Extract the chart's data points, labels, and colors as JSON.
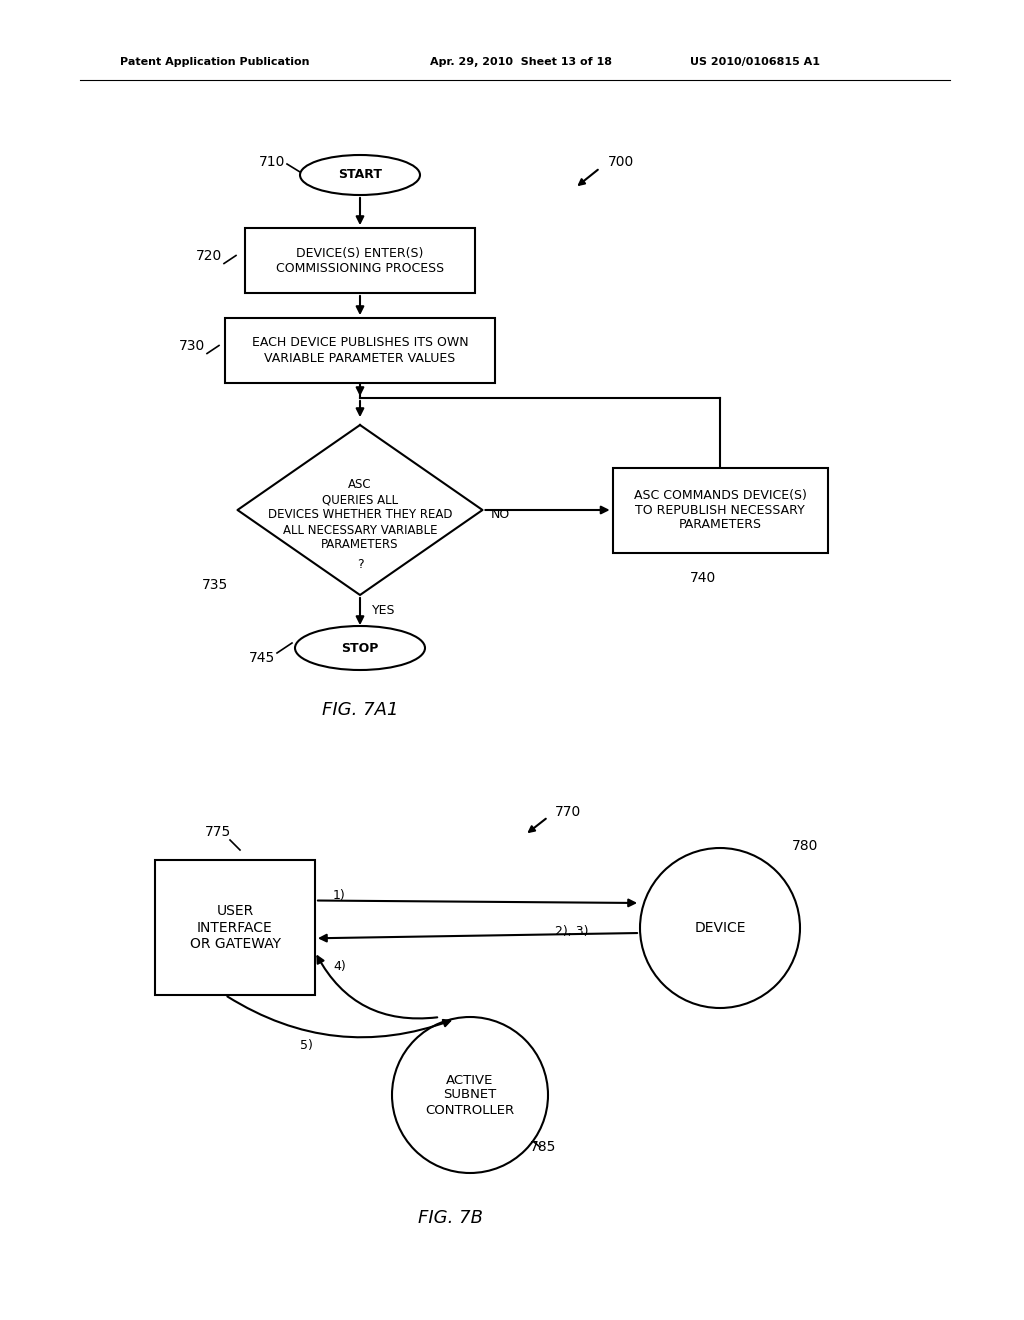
{
  "bg_color": "#ffffff",
  "header_left": "Patent Application Publication",
  "header_mid": "Apr. 29, 2010  Sheet 13 of 18",
  "header_right": "US 2010/0106815 A1",
  "fig7a1_label": "FIG. 7A1",
  "fig7b_label": "FIG. 7B",
  "label_700": "700",
  "label_710": "710",
  "label_720": "720",
  "label_730": "730",
  "label_735": "735",
  "label_740": "740",
  "label_745": "745",
  "label_770": "770",
  "label_775": "775",
  "label_780": "780",
  "label_785": "785",
  "start_text": "START",
  "stop_text": "STOP",
  "box1_text": "DEVICE(S) ENTER(S)\nCOMMISSIONING PROCESS",
  "box2_text": "EACH DEVICE PUBLISHES ITS OWN\nVARIABLE PARAMETER VALUES",
  "diamond_line1": "ASC",
  "diamond_line2": "QUERIES ALL",
  "diamond_line3": "DEVICES WHETHER THEY READ",
  "diamond_line4": "ALL NECESSARY VARIABLE",
  "diamond_line5": "PARAMETERS",
  "diamond_line6": "?",
  "box3_text": "ASC COMMANDS DEVICE(S)\nTO REPUBLISH NECESSARY\nPARAMETERS",
  "no_text": "NO",
  "yes_text": "YES",
  "ui_text": "USER\nINTERFACE\nOR GATEWAY",
  "device_text": "DEVICE",
  "asc_text": "ACTIVE\nSUBNET\nCONTROLLER",
  "font_family": "DejaVu Sans",
  "line_color": "#000000",
  "text_color": "#000000"
}
